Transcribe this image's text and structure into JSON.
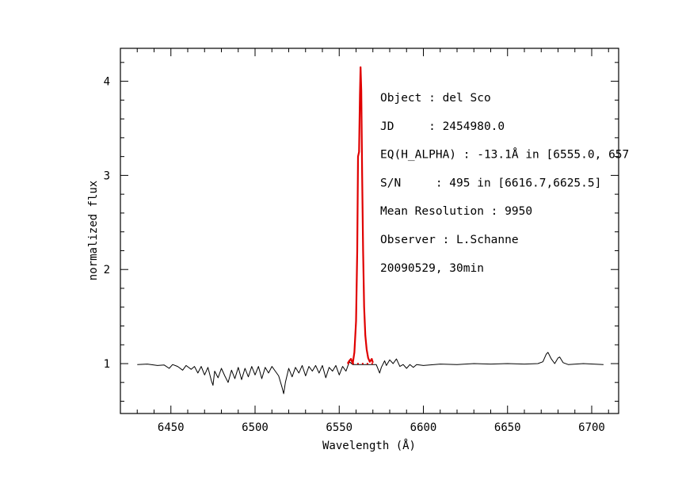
{
  "chart_data": {
    "type": "line",
    "xlabel": "Wavelength (Å)",
    "ylabel": "normalized flux",
    "xlim": [
      6420,
      6716
    ],
    "ylim": [
      0.47,
      4.35
    ],
    "x_ticks": [
      {
        "value": 6450,
        "label": "6450"
      },
      {
        "value": 6500,
        "label": "6500"
      },
      {
        "value": 6550,
        "label": "6550"
      },
      {
        "value": 6600,
        "label": "6600"
      },
      {
        "value": 6650,
        "label": "6650"
      },
      {
        "value": 6700,
        "label": "6700"
      }
    ],
    "y_ticks": [
      {
        "value": 1,
        "label": "1"
      },
      {
        "value": 2,
        "label": "2"
      },
      {
        "value": 3,
        "label": "3"
      },
      {
        "value": 4,
        "label": "4"
      }
    ],
    "x_minor_step": 10,
    "y_minor_step": 0.2,
    "grid": false,
    "annotations": [
      "Object : del Sco",
      "JD     : 2454980.0",
      "EQ(H_ALPHA) : -13.1Å in [6555.0, 657",
      "S/N     : 495 in [6616.7,6625.5]",
      "Mean Resolution : 9950",
      "Observer : L.Schanne",
      "20090529, 30min"
    ],
    "series": [
      {
        "color": "#000000",
        "style": "solid",
        "points": [
          [
            6430,
            0.99
          ],
          [
            6436,
            0.995
          ],
          [
            6442,
            0.98
          ],
          [
            6446,
            0.985
          ],
          [
            6449,
            0.95
          ],
          [
            6451,
            0.99
          ],
          [
            6454,
            0.97
          ],
          [
            6457,
            0.93
          ],
          [
            6459,
            0.98
          ],
          [
            6462,
            0.94
          ],
          [
            6464,
            0.97
          ],
          [
            6466,
            0.9
          ],
          [
            6468,
            0.97
          ],
          [
            6470,
            0.88
          ],
          [
            6472,
            0.96
          ],
          [
            6474,
            0.82
          ],
          [
            6475,
            0.77
          ],
          [
            6476,
            0.92
          ],
          [
            6478,
            0.85
          ],
          [
            6480,
            0.95
          ],
          [
            6482,
            0.87
          ],
          [
            6484,
            0.8
          ],
          [
            6486,
            0.93
          ],
          [
            6488,
            0.84
          ],
          [
            6490,
            0.96
          ],
          [
            6492,
            0.83
          ],
          [
            6494,
            0.95
          ],
          [
            6496,
            0.86
          ],
          [
            6498,
            0.97
          ],
          [
            6500,
            0.88
          ],
          [
            6502,
            0.97
          ],
          [
            6504,
            0.84
          ],
          [
            6506,
            0.96
          ],
          [
            6508,
            0.9
          ],
          [
            6510,
            0.97
          ],
          [
            6512,
            0.92
          ],
          [
            6514,
            0.87
          ],
          [
            6516,
            0.75
          ],
          [
            6517,
            0.68
          ],
          [
            6518,
            0.8
          ],
          [
            6520,
            0.95
          ],
          [
            6522,
            0.86
          ],
          [
            6524,
            0.96
          ],
          [
            6526,
            0.9
          ],
          [
            6528,
            0.98
          ],
          [
            6530,
            0.87
          ],
          [
            6532,
            0.97
          ],
          [
            6534,
            0.92
          ],
          [
            6536,
            0.98
          ],
          [
            6538,
            0.9
          ],
          [
            6540,
            0.98
          ],
          [
            6542,
            0.85
          ],
          [
            6544,
            0.96
          ],
          [
            6546,
            0.92
          ],
          [
            6548,
            0.98
          ],
          [
            6550,
            0.88
          ],
          [
            6552,
            0.97
          ],
          [
            6554,
            0.92
          ],
          [
            6556,
            1.02
          ],
          [
            6558,
            0.99
          ],
          [
            6572,
            0.99
          ],
          [
            6574,
            0.9
          ],
          [
            6575,
            0.96
          ],
          [
            6577,
            1.03
          ],
          [
            6578,
            0.98
          ],
          [
            6580,
            1.04
          ],
          [
            6582,
            1.0
          ],
          [
            6584,
            1.05
          ],
          [
            6586,
            0.97
          ],
          [
            6588,
            0.99
          ],
          [
            6590,
            0.95
          ],
          [
            6592,
            0.99
          ],
          [
            6594,
            0.96
          ],
          [
            6596,
            0.99
          ],
          [
            6600,
            0.98
          ],
          [
            6610,
            0.995
          ],
          [
            6620,
            0.99
          ],
          [
            6630,
            1.0
          ],
          [
            6640,
            0.995
          ],
          [
            6650,
            1.0
          ],
          [
            6660,
            0.995
          ],
          [
            6668,
            1.0
          ],
          [
            6671,
            1.02
          ],
          [
            6673,
            1.1
          ],
          [
            6674,
            1.12
          ],
          [
            6676,
            1.05
          ],
          [
            6678,
            1.0
          ],
          [
            6680,
            1.06
          ],
          [
            6681,
            1.07
          ],
          [
            6683,
            1.01
          ],
          [
            6686,
            0.99
          ],
          [
            6695,
            1.0
          ],
          [
            6707,
            0.99
          ]
        ]
      },
      {
        "color": "#e00000",
        "style": "solid",
        "points": [
          [
            6555.0,
            1.0
          ],
          [
            6556.0,
            1.03
          ],
          [
            6557.0,
            1.05
          ],
          [
            6558.0,
            1.0
          ],
          [
            6559.0,
            1.12
          ],
          [
            6560.0,
            1.45
          ],
          [
            6560.7,
            2.2
          ],
          [
            6561.2,
            3.2
          ],
          [
            6561.8,
            3.25
          ],
          [
            6562.3,
            3.85
          ],
          [
            6562.7,
            4.15
          ],
          [
            6563.1,
            3.9
          ],
          [
            6563.6,
            3.0
          ],
          [
            6564.2,
            2.2
          ],
          [
            6564.8,
            1.6
          ],
          [
            6565.5,
            1.3
          ],
          [
            6566.3,
            1.15
          ],
          [
            6567.2,
            1.06
          ],
          [
            6568.2,
            1.02
          ],
          [
            6569.3,
            1.05
          ],
          [
            6570.0,
            1.01
          ]
        ]
      },
      {
        "color": "#e00000",
        "style": "dotted",
        "points": [
          [
            6555.0,
            1.0
          ],
          [
            6570.0,
            1.0
          ]
        ]
      }
    ]
  }
}
